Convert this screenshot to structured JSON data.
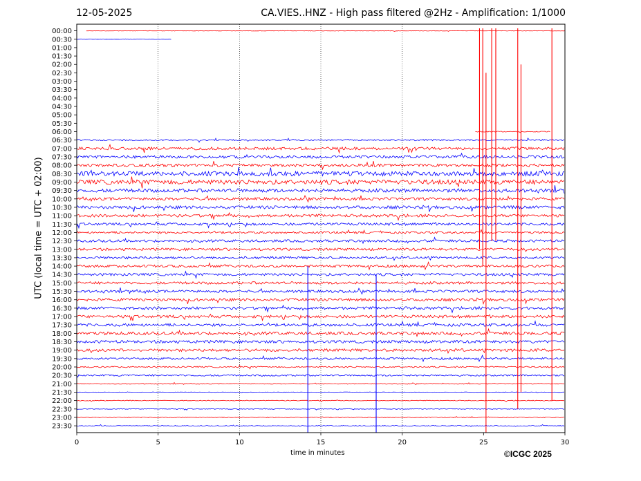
{
  "chart_data": {
    "type": "line",
    "title_left": "12-05-2025",
    "title_right": "CA.VIES..HNZ - High pass filtered @2Hz - Amplification: 1/1000",
    "xlabel": "time in minutes",
    "ylabel": "UTC (local time = UTC + 02:00)",
    "xlim": [
      0,
      30
    ],
    "x_ticks": [
      "0",
      "5",
      "10",
      "15",
      "20",
      "25",
      "30"
    ],
    "vertical_gridlines_minutes": [
      5,
      10,
      15,
      20
    ],
    "row_labels": [
      "00:00",
      "00:30",
      "01:00",
      "01:30",
      "02:00",
      "02:30",
      "03:00",
      "03:30",
      "04:00",
      "04:30",
      "05:00",
      "05:30",
      "06:00",
      "06:30",
      "07:00",
      "07:30",
      "08:00",
      "08:30",
      "09:00",
      "09:30",
      "10:00",
      "10:30",
      "11:00",
      "11:30",
      "12:00",
      "12:30",
      "13:00",
      "13:30",
      "14:00",
      "14:30",
      "15:00",
      "15:30",
      "16:00",
      "16:30",
      "17:00",
      "17:30",
      "18:00",
      "18:30",
      "19:00",
      "19:30",
      "20:00",
      "20:30",
      "21:00",
      "21:30",
      "22:00",
      "22:30",
      "23:00",
      "23:30"
    ],
    "colors": {
      "even_rows": "#ff0000",
      "odd_rows": "#0000ff"
    },
    "rows": [
      {
        "amp": 0.3,
        "start": 0.6,
        "end": 30
      },
      {
        "amp": 0.3,
        "start": 0,
        "end": 5.85
      },
      {
        "amp": 0,
        "start": 0,
        "end": 0
      },
      {
        "amp": 0,
        "start": 0,
        "end": 0
      },
      {
        "amp": 0,
        "start": 0,
        "end": 0
      },
      {
        "amp": 0,
        "start": 0,
        "end": 0
      },
      {
        "amp": 0,
        "start": 0,
        "end": 0
      },
      {
        "amp": 0,
        "start": 0,
        "end": 0
      },
      {
        "amp": 0,
        "start": 0,
        "end": 0
      },
      {
        "amp": 0,
        "start": 0,
        "end": 0
      },
      {
        "amp": 0,
        "start": 0,
        "end": 0
      },
      {
        "amp": 0,
        "start": 0,
        "end": 0
      },
      {
        "amp": 0.6,
        "start": 24.5,
        "end": 29.1
      },
      {
        "amp": 1.0,
        "start": 0,
        "end": 30
      },
      {
        "amp": 2.0,
        "start": 0,
        "end": 30
      },
      {
        "amp": 2.0,
        "start": 0,
        "end": 30
      },
      {
        "amp": 2.0,
        "start": 0,
        "end": 30
      },
      {
        "amp": 3.2,
        "start": 0,
        "end": 30
      },
      {
        "amp": 3.2,
        "start": 0,
        "end": 30
      },
      {
        "amp": 2.5,
        "start": 0,
        "end": 30
      },
      {
        "amp": 2.0,
        "start": 0,
        "end": 30
      },
      {
        "amp": 2.2,
        "start": 0,
        "end": 30
      },
      {
        "amp": 2.0,
        "start": 0,
        "end": 30
      },
      {
        "amp": 1.8,
        "start": 0,
        "end": 30
      },
      {
        "amp": 1.5,
        "start": 0,
        "end": 30
      },
      {
        "amp": 1.8,
        "start": 0,
        "end": 30
      },
      {
        "amp": 1.8,
        "start": 0,
        "end": 30
      },
      {
        "amp": 1.8,
        "start": 0,
        "end": 30
      },
      {
        "amp": 1.8,
        "start": 0,
        "end": 30
      },
      {
        "amp": 1.8,
        "start": 0,
        "end": 30
      },
      {
        "amp": 1.8,
        "start": 0,
        "end": 30
      },
      {
        "amp": 1.8,
        "start": 0,
        "end": 30
      },
      {
        "amp": 2.0,
        "start": 0,
        "end": 30
      },
      {
        "amp": 2.0,
        "start": 0,
        "end": 30
      },
      {
        "amp": 2.0,
        "start": 0,
        "end": 30
      },
      {
        "amp": 2.0,
        "start": 0,
        "end": 30
      },
      {
        "amp": 2.2,
        "start": 0,
        "end": 30
      },
      {
        "amp": 2.0,
        "start": 0,
        "end": 30
      },
      {
        "amp": 2.0,
        "start": 0,
        "end": 30
      },
      {
        "amp": 1.5,
        "start": 0,
        "end": 30
      },
      {
        "amp": 1.0,
        "start": 0,
        "end": 30
      },
      {
        "amp": 1.2,
        "start": 0,
        "end": 30
      },
      {
        "amp": 0.6,
        "start": 0,
        "end": 30
      },
      {
        "amp": 0.3,
        "start": 0,
        "end": 30
      },
      {
        "amp": 0.5,
        "start": 0,
        "end": 30
      },
      {
        "amp": 0.5,
        "start": 0,
        "end": 30
      },
      {
        "amp": 0.6,
        "start": 0,
        "end": 30
      },
      {
        "amp": 0.6,
        "start": 0,
        "end": 30
      }
    ],
    "spikes": [
      {
        "color": "#ff0000",
        "minute": 24.75,
        "from_row": -0.3,
        "to_row": 26
      },
      {
        "color": "#ff0000",
        "minute": 24.95,
        "from_row": -0.3,
        "to_row": 28
      },
      {
        "color": "#ff0000",
        "minute": 25.15,
        "from_row": 5,
        "to_row": 48.5
      },
      {
        "color": "#ff0000",
        "minute": 25.5,
        "from_row": -0.3,
        "to_row": 25
      },
      {
        "color": "#ff0000",
        "minute": 25.75,
        "from_row": -0.3,
        "to_row": 25
      },
      {
        "color": "#ff0000",
        "minute": 27.1,
        "from_row": -0.3,
        "to_row": 45
      },
      {
        "color": "#ff0000",
        "minute": 27.3,
        "from_row": 4,
        "to_row": 43
      },
      {
        "color": "#ff0000",
        "minute": 29.2,
        "from_row": -0.3,
        "to_row": 44
      },
      {
        "color": "#0000ff",
        "minute": 14.2,
        "from_row": 28,
        "to_row": 48.5
      },
      {
        "color": "#0000ff",
        "minute": 18.4,
        "from_row": 29,
        "to_row": 48.5
      }
    ]
  },
  "footer": {
    "copyright": "©ICGC 2025"
  }
}
